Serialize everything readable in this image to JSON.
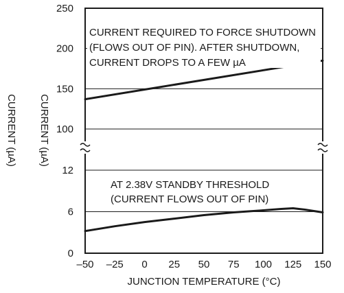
{
  "chart_data": {
    "type": "line",
    "title": "",
    "xlabel": "JUNCTION TEMPERATURE (°C)",
    "ylabel": "CURRENT (µA)",
    "ylabel_outer": "CURRENT (µA)",
    "x_ticks": [
      "–50",
      "–25",
      "0",
      "25",
      "50",
      "75",
      "100",
      "125",
      "150"
    ],
    "xlim": [
      -50,
      150
    ],
    "axis_break": true,
    "grid": true,
    "panels": [
      {
        "name": "upper",
        "ylim": [
          100,
          250
        ],
        "y_ticks": [
          "100",
          "150",
          "200",
          "250"
        ],
        "annotation": [
          "CURRENT REQUIRED TO FORCE SHUTDOWN",
          "(FLOWS OUT OF PIN). AFTER SHUTDOWN,",
          "CURRENT DROPS TO A FEW µA"
        ],
        "series": [
          {
            "x": [
              -50,
              150
            ],
            "y": [
              137,
              185
            ]
          }
        ]
      },
      {
        "name": "lower",
        "ylim": [
          0,
          12
        ],
        "y_ticks": [
          "0",
          "6",
          "12"
        ],
        "annotation": [
          "AT 2.38V STANDBY THRESHOLD",
          "(CURRENT FLOWS OUT OF PIN)"
        ],
        "series": [
          {
            "x": [
              -50,
              -25,
              0,
              25,
              50,
              75,
              100,
              115,
              125,
              135,
              150
            ],
            "y": [
              3.2,
              3.9,
              4.5,
              5.0,
              5.5,
              5.9,
              6.2,
              6.4,
              6.5,
              6.3,
              5.9
            ]
          }
        ]
      }
    ]
  }
}
